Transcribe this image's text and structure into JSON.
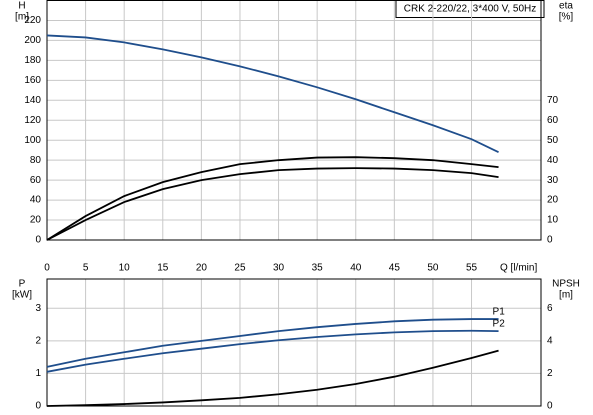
{
  "chart_data": [
    {
      "type": "line",
      "title": "CRK 2-220/22, 3*400 V, 50Hz",
      "y_label": "H",
      "y_unit": "[m]",
      "y2_label": "eta",
      "y2_unit": "[%]",
      "x_label": "Q [l/min]",
      "xlim": [
        0,
        64
      ],
      "xticks": [
        0,
        5,
        10,
        15,
        20,
        25,
        30,
        35,
        40,
        45,
        50,
        55
      ],
      "ylim": [
        0,
        240
      ],
      "yticks": [
        0,
        20,
        40,
        60,
        80,
        100,
        120,
        140,
        160,
        180,
        200,
        220
      ],
      "y2lim": [
        0,
        120
      ],
      "y2ticks": [
        0,
        10,
        20,
        30,
        40,
        50,
        60,
        70
      ],
      "grid": true,
      "x": [
        0,
        5,
        10,
        15,
        20,
        25,
        30,
        35,
        40,
        45,
        50,
        55,
        58.5
      ],
      "series": [
        {
          "color": "#1f4e8c",
          "values": [
            205,
            203,
            198,
            191,
            183,
            174,
            164,
            153,
            141,
            128,
            115,
            101,
            88
          ]
        },
        {
          "color": "#000000",
          "axis": "y2",
          "values": [
            0,
            12,
            22,
            29,
            34,
            38,
            40,
            41.3,
            41.5,
            41,
            40,
            38,
            36.5
          ]
        },
        {
          "color": "#000000",
          "axis": "y2",
          "values": [
            0,
            10,
            19,
            25.5,
            30,
            33,
            35,
            35.8,
            36,
            35.8,
            35,
            33.5,
            31.5
          ]
        }
      ]
    },
    {
      "type": "line",
      "y_label": "P",
      "y_unit": "[kW]",
      "y2_label": "NPSH",
      "y2_unit": "[m]",
      "xlim": [
        0,
        64
      ],
      "ylim": [
        0,
        3.9
      ],
      "yticks": [
        0,
        1,
        2,
        3
      ],
      "y2lim": [
        0,
        7.8
      ],
      "y2ticks": [
        0,
        2,
        4,
        6
      ],
      "grid": true,
      "x": [
        0,
        5,
        10,
        15,
        20,
        25,
        30,
        35,
        40,
        45,
        50,
        55,
        58.5
      ],
      "series": [
        {
          "name": "P1",
          "color": "#1f4e8c",
          "values": [
            1.2,
            1.45,
            1.65,
            1.85,
            2.0,
            2.15,
            2.3,
            2.42,
            2.52,
            2.6,
            2.65,
            2.67,
            2.67
          ]
        },
        {
          "name": "P2",
          "color": "#1f4e8c",
          "values": [
            1.05,
            1.27,
            1.45,
            1.62,
            1.76,
            1.9,
            2.02,
            2.12,
            2.2,
            2.26,
            2.3,
            2.31,
            2.3
          ]
        },
        {
          "color": "#000000",
          "axis": "y2",
          "values": [
            0,
            0.05,
            0.12,
            0.22,
            0.35,
            0.5,
            0.72,
            1.0,
            1.35,
            1.8,
            2.35,
            2.95,
            3.4
          ]
        }
      ]
    }
  ]
}
